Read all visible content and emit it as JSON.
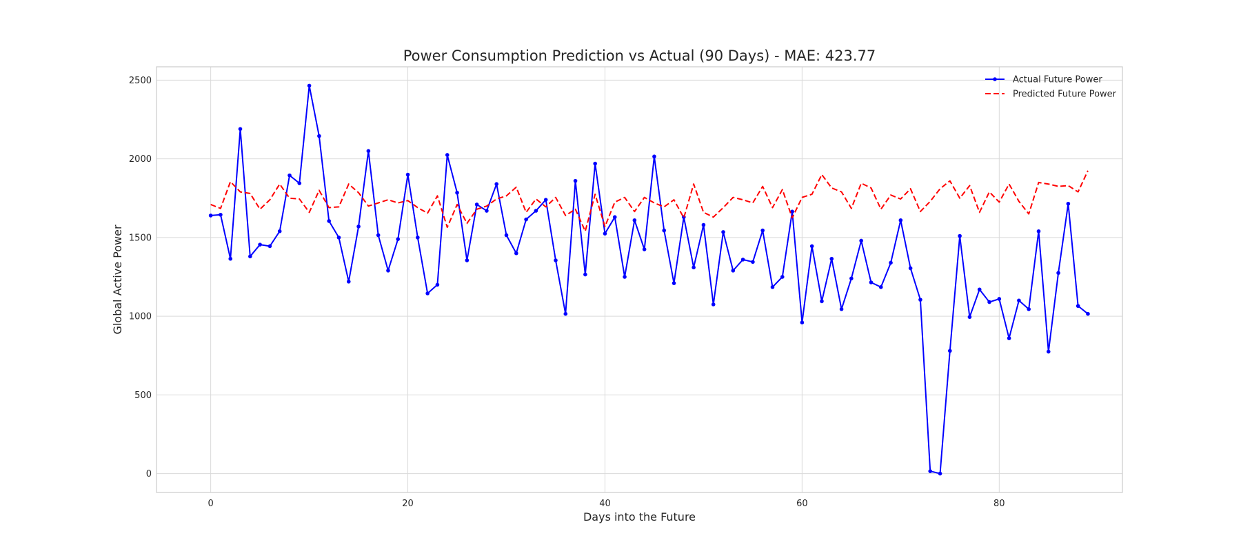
{
  "chart_data": {
    "type": "line",
    "title": "Power Consumption Prediction vs Actual (90 Days) - MAE: 423.77",
    "xlabel": "Days into the Future",
    "ylabel": "Global Active Power",
    "xlim": [
      -5.5,
      92.5
    ],
    "ylim": [
      -120,
      2585
    ],
    "x_ticks": [
      0,
      20,
      40,
      60,
      80
    ],
    "y_ticks": [
      0,
      500,
      1000,
      1500,
      2000,
      2500
    ],
    "grid": true,
    "legend_position": "top-right",
    "series": [
      {
        "name": "Actual Future Power",
        "color": "#0000ff",
        "style": "solid-with-markers",
        "values": [
          1640,
          1645,
          1365,
          2190,
          1380,
          1455,
          1445,
          1540,
          1895,
          1845,
          2465,
          2145,
          1605,
          1500,
          1220,
          1570,
          2050,
          1515,
          1290,
          1490,
          1900,
          1500,
          1145,
          1200,
          2025,
          1785,
          1355,
          1710,
          1670,
          1840,
          1515,
          1400,
          1615,
          1670,
          1740,
          1355,
          1015,
          1860,
          1265,
          1970,
          1525,
          1630,
          1250,
          1610,
          1425,
          2015,
          1545,
          1210,
          1630,
          1310,
          1580,
          1075,
          1535,
          1290,
          1360,
          1345,
          1545,
          1185,
          1250,
          1665,
          960,
          1445,
          1095,
          1365,
          1045,
          1240,
          1480,
          1215,
          1185,
          1340,
          1610,
          1305,
          1105,
          15,
          0,
          780,
          1510,
          995,
          1170,
          1090,
          1110,
          860,
          1100,
          1045,
          1540,
          775,
          1275,
          1715,
          1065,
          1015
        ]
      },
      {
        "name": "Predicted Future Power",
        "color": "#ff0000",
        "style": "dashed",
        "values": [
          1710,
          1685,
          1855,
          1790,
          1780,
          1680,
          1740,
          1840,
          1750,
          1745,
          1660,
          1800,
          1690,
          1695,
          1840,
          1785,
          1700,
          1720,
          1740,
          1720,
          1735,
          1690,
          1655,
          1765,
          1565,
          1710,
          1590,
          1680,
          1700,
          1745,
          1765,
          1820,
          1660,
          1745,
          1695,
          1755,
          1640,
          1680,
          1540,
          1775,
          1570,
          1725,
          1755,
          1665,
          1755,
          1720,
          1695,
          1740,
          1625,
          1840,
          1660,
          1630,
          1690,
          1755,
          1740,
          1720,
          1825,
          1690,
          1805,
          1625,
          1755,
          1775,
          1900,
          1815,
          1790,
          1685,
          1845,
          1815,
          1680,
          1770,
          1745,
          1810,
          1665,
          1730,
          1810,
          1860,
          1750,
          1830,
          1660,
          1790,
          1725,
          1840,
          1730,
          1650,
          1850,
          1840,
          1825,
          1830,
          1790,
          1925
        ]
      }
    ]
  }
}
